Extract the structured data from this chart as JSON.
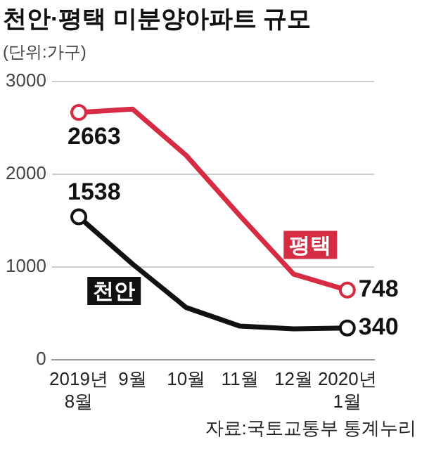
{
  "chart_data": {
    "type": "line",
    "title": "천안·평택 미분양아파트 규모",
    "subtitle": "(단위:가구)",
    "categories": [
      "2019년 8월",
      "9월",
      "10월",
      "11월",
      "12월",
      "2020년 1월"
    ],
    "series": [
      {
        "name": "평택",
        "color": "#d52b43",
        "values": [
          2663,
          2700,
          2200,
          1550,
          920,
          748
        ],
        "value_labels": [
          "2663",
          null,
          null,
          null,
          null,
          "748"
        ]
      },
      {
        "name": "천안",
        "color": "#111111",
        "values": [
          1538,
          1030,
          560,
          360,
          330,
          340
        ],
        "value_labels": [
          "1538",
          null,
          null,
          null,
          null,
          "340"
        ]
      }
    ],
    "ylim": [
      0,
      3000
    ],
    "yticks": [
      0,
      1000,
      2000,
      3000
    ],
    "grid": "y",
    "legend": false,
    "line_style": "solid",
    "annotations": [
      "자료:국토교통부 통계누리"
    ]
  }
}
